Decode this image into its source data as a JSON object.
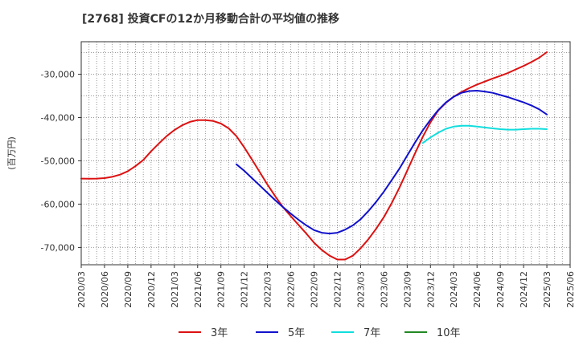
{
  "chart_data": {
    "type": "line",
    "title": "[2768]  投資CFの12か月移動合計の平均値の推移",
    "ylabel": "(百万円)",
    "xlabel": "",
    "ylim": [
      -74000,
      -22500
    ],
    "yticks": [
      -30000,
      -40000,
      -50000,
      -60000,
      -70000
    ],
    "ytick_labels": [
      "-30,000",
      "-40,000",
      "-50,000",
      "-60,000",
      "-70,000"
    ],
    "xticks": [
      "2020/03",
      "2020/06",
      "2020/09",
      "2020/12",
      "2021/03",
      "2021/06",
      "2021/09",
      "2021/12",
      "2022/03",
      "2022/06",
      "2022/09",
      "2022/12",
      "2023/03",
      "2023/06",
      "2023/09",
      "2023/12",
      "2024/03",
      "2024/06",
      "2024/09",
      "2024/12",
      "2025/03",
      "2025/06"
    ],
    "grid": true,
    "legend_position": "bottom",
    "series": [
      {
        "name": "3年",
        "color": "#dd1111",
        "points": [
          [
            "2020/03",
            -54100
          ],
          [
            "2020/04",
            -54150
          ],
          [
            "2020/05",
            -54100
          ],
          [
            "2020/06",
            -54000
          ],
          [
            "2020/07",
            -53700
          ],
          [
            "2020/08",
            -53200
          ],
          [
            "2020/09",
            -52400
          ],
          [
            "2020/10",
            -51200
          ],
          [
            "2020/11",
            -49800
          ],
          [
            "2020/12",
            -47800
          ],
          [
            "2021/01",
            -46000
          ],
          [
            "2021/02",
            -44300
          ],
          [
            "2021/03",
            -42900
          ],
          [
            "2021/04",
            -41800
          ],
          [
            "2021/05",
            -41000
          ],
          [
            "2021/06",
            -40600
          ],
          [
            "2021/07",
            -40600
          ],
          [
            "2021/08",
            -40800
          ],
          [
            "2021/09",
            -41400
          ],
          [
            "2021/10",
            -42500
          ],
          [
            "2021/11",
            -44300
          ],
          [
            "2021/12",
            -46900
          ],
          [
            "2022/01",
            -49700
          ],
          [
            "2022/02",
            -52600
          ],
          [
            "2022/03",
            -55500
          ],
          [
            "2022/04",
            -58200
          ],
          [
            "2022/05",
            -60700
          ],
          [
            "2022/06",
            -62800
          ],
          [
            "2022/07",
            -64800
          ],
          [
            "2022/08",
            -66800
          ],
          [
            "2022/09",
            -68900
          ],
          [
            "2022/10",
            -70600
          ],
          [
            "2022/11",
            -71900
          ],
          [
            "2022/12",
            -72800
          ],
          [
            "2023/01",
            -72800
          ],
          [
            "2023/02",
            -71900
          ],
          [
            "2023/03",
            -70200
          ],
          [
            "2023/04",
            -68100
          ],
          [
            "2023/05",
            -65700
          ],
          [
            "2023/06",
            -63000
          ],
          [
            "2023/07",
            -59800
          ],
          [
            "2023/08",
            -56200
          ],
          [
            "2023/09",
            -52300
          ],
          [
            "2023/10",
            -48300
          ],
          [
            "2023/11",
            -44500
          ],
          [
            "2023/12",
            -41100
          ],
          [
            "2024/01",
            -38400
          ],
          [
            "2024/02",
            -36600
          ],
          [
            "2024/03",
            -35200
          ],
          [
            "2024/04",
            -34100
          ],
          [
            "2024/05",
            -33200
          ],
          [
            "2024/06",
            -32400
          ],
          [
            "2024/07",
            -31700
          ],
          [
            "2024/08",
            -31000
          ],
          [
            "2024/09",
            -30400
          ],
          [
            "2024/10",
            -29700
          ],
          [
            "2024/11",
            -28900
          ],
          [
            "2024/12",
            -28100
          ],
          [
            "2025/01",
            -27200
          ],
          [
            "2025/02",
            -26200
          ],
          [
            "2025/03",
            -24900
          ]
        ]
      },
      {
        "name": "5年",
        "color": "#1111cc",
        "points": [
          [
            "2021/11",
            -50800
          ],
          [
            "2021/12",
            -52300
          ],
          [
            "2022/01",
            -54000
          ],
          [
            "2022/02",
            -55700
          ],
          [
            "2022/03",
            -57400
          ],
          [
            "2022/04",
            -59100
          ],
          [
            "2022/05",
            -60700
          ],
          [
            "2022/06",
            -62200
          ],
          [
            "2022/07",
            -63600
          ],
          [
            "2022/08",
            -64900
          ],
          [
            "2022/09",
            -66000
          ],
          [
            "2022/10",
            -66600
          ],
          [
            "2022/11",
            -66800
          ],
          [
            "2022/12",
            -66600
          ],
          [
            "2023/01",
            -65900
          ],
          [
            "2023/02",
            -64900
          ],
          [
            "2023/03",
            -63500
          ],
          [
            "2023/04",
            -61600
          ],
          [
            "2023/05",
            -59500
          ],
          [
            "2023/06",
            -57100
          ],
          [
            "2023/07",
            -54500
          ],
          [
            "2023/08",
            -51800
          ],
          [
            "2023/09",
            -48800
          ],
          [
            "2023/10",
            -45800
          ],
          [
            "2023/11",
            -43000
          ],
          [
            "2023/12",
            -40500
          ],
          [
            "2024/01",
            -38300
          ],
          [
            "2024/02",
            -36500
          ],
          [
            "2024/03",
            -35200
          ],
          [
            "2024/04",
            -34300
          ],
          [
            "2024/05",
            -33900
          ],
          [
            "2024/06",
            -33800
          ],
          [
            "2024/07",
            -34000
          ],
          [
            "2024/08",
            -34300
          ],
          [
            "2024/09",
            -34800
          ],
          [
            "2024/10",
            -35300
          ],
          [
            "2024/11",
            -35900
          ],
          [
            "2024/12",
            -36500
          ],
          [
            "2025/01",
            -37200
          ],
          [
            "2025/02",
            -38100
          ],
          [
            "2025/03",
            -39300
          ]
        ]
      },
      {
        "name": "7年",
        "color": "#11dddd",
        "points": [
          [
            "2023/11",
            -45900
          ],
          [
            "2023/12",
            -44600
          ],
          [
            "2024/01",
            -43500
          ],
          [
            "2024/02",
            -42600
          ],
          [
            "2024/03",
            -42100
          ],
          [
            "2024/04",
            -41900
          ],
          [
            "2024/05",
            -41900
          ],
          [
            "2024/06",
            -42100
          ],
          [
            "2024/07",
            -42300
          ],
          [
            "2024/08",
            -42500
          ],
          [
            "2024/09",
            -42700
          ],
          [
            "2024/10",
            -42800
          ],
          [
            "2024/11",
            -42800
          ],
          [
            "2024/12",
            -42700
          ],
          [
            "2025/01",
            -42600
          ],
          [
            "2025/02",
            -42600
          ],
          [
            "2025/03",
            -42700
          ]
        ]
      },
      {
        "name": "10年",
        "color": "#228822",
        "points": []
      }
    ]
  }
}
